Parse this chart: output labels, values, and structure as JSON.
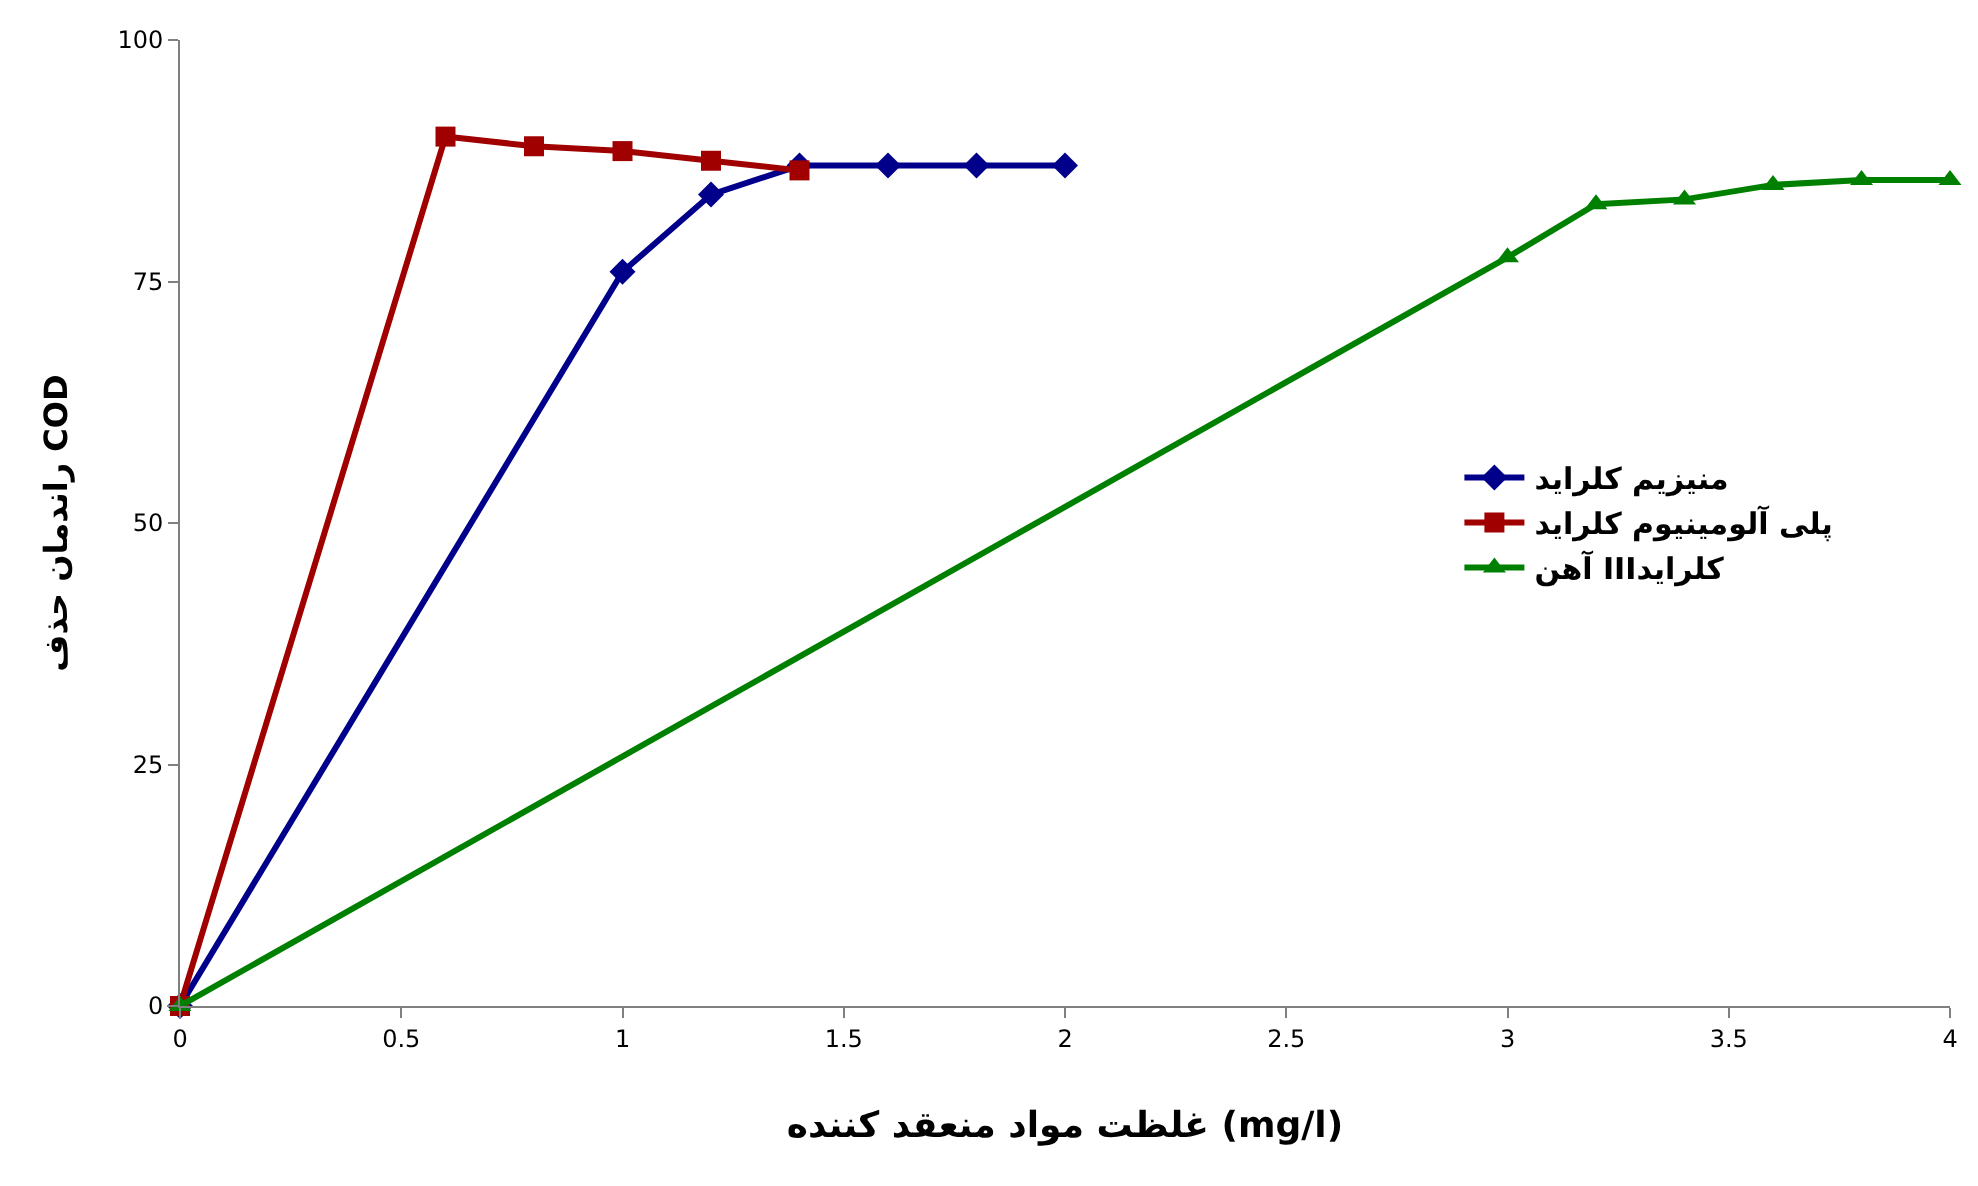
{
  "chart_data": {
    "type": "line",
    "xlabel": "غلظت مواد منعقد کننده (mg/l)",
    "ylabel": "راندمان حذف COD",
    "xlim": [
      0,
      4
    ],
    "xticks": [
      0,
      0.5,
      1,
      1.5,
      2,
      2.5,
      3,
      3.5,
      4
    ],
    "ylim": [
      0,
      100
    ],
    "yticks": [
      0,
      25,
      50,
      75,
      100
    ],
    "legend": "right",
    "line_style": "solid",
    "series": [
      {
        "name": "منیزیم کلراید",
        "color": "#00008b",
        "marker": "diamond",
        "x": [
          0,
          1,
          1.2,
          1.4,
          1.6,
          1.8,
          2
        ],
        "values": [
          0,
          76,
          84,
          87,
          87,
          87,
          87
        ]
      },
      {
        "name": "پلی آلومینیوم کلراید",
        "color": "#a00000",
        "marker": "square",
        "x": [
          0,
          0.6,
          0.8,
          1,
          1.2,
          1.4
        ],
        "values": [
          0,
          90,
          89,
          88.5,
          87.5,
          86.5
        ]
      },
      {
        "name": "آهن IIIکلراید",
        "color": "#008000",
        "marker": "triangle",
        "x": [
          0,
          3,
          3.2,
          3.4,
          3.6,
          3.8,
          4
        ],
        "values": [
          0,
          77.5,
          83,
          83.5,
          85,
          85.5,
          85.5
        ]
      }
    ]
  }
}
